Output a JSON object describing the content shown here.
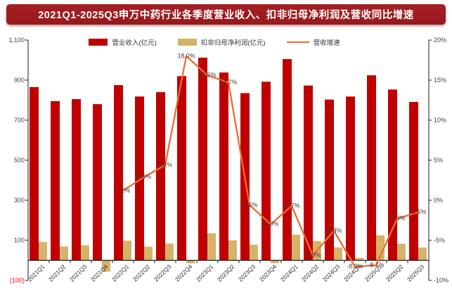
{
  "title": "2021Q1-2025Q3申万中药行业各季度营业收入、扣非归母净利润及营收同比增速",
  "legend": [
    {
      "key": "revenue",
      "label": "营业收入(亿元)",
      "type": "bar",
      "color": "#C00000"
    },
    {
      "key": "net-profit",
      "label": "扣非归母净利润(亿元)",
      "type": "bar",
      "color": "#D5B36B"
    },
    {
      "key": "growth",
      "label": "营收增速",
      "type": "line",
      "color": "#ED6C30"
    }
  ],
  "colors": {
    "banner_bg": "#A61F23",
    "banner_text": "#FFFFFF",
    "revenue_bar": "#C00000",
    "profit_bar": "#D5B36B",
    "growth_line": "#ED6C30",
    "axis": "#1a1a1a",
    "tick_text": "#404040",
    "negative_tick_text": "#FF0000",
    "data_label_text": "#3f3f3f"
  },
  "chart_data": {
    "type": "bar",
    "subtype": "combo-bar-line-dual-axis",
    "title": "2021Q1-2025Q3申万中药行业各季度营业收入、扣非归母净利润及营收同比增速",
    "categories": [
      "2021Q1",
      "2021Q2",
      "2021Q3",
      "2021Q4",
      "2022Q1",
      "2022Q2",
      "2022Q3",
      "2022Q4",
      "2023Q1",
      "2023Q2",
      "2023Q3",
      "2023Q4",
      "2024Q1",
      "2024Q2",
      "2024Q3",
      "2024Q4",
      "2025Q1",
      "2025Q2",
      "2025Q3"
    ],
    "series": [
      {
        "name": "营业收入(亿元)",
        "type": "bar",
        "axis": "left",
        "color": "#C00000",
        "values": [
          865,
          795,
          805,
          780,
          875,
          818,
          840,
          920,
          1012,
          938,
          835,
          892,
          1005,
          873,
          803,
          818,
          924,
          853,
          791
        ]
      },
      {
        "name": "扣非归母净利润(亿元)",
        "type": "bar",
        "axis": "left",
        "color": "#D5B36B",
        "values": [
          92,
          69,
          75,
          -56,
          98,
          68,
          84,
          -15,
          135,
          100,
          78,
          -14,
          128,
          96,
          64,
          12,
          125,
          83,
          64
        ]
      },
      {
        "name": "营收增速",
        "type": "line",
        "axis": "right",
        "color": "#ED6C30",
        "values": [
          null,
          null,
          null,
          null,
          1.2,
          2.9,
          4.4,
          18.0,
          15.6,
          14.7,
          -0.6,
          -3.0,
          -0.7,
          -6.9,
          -3.8,
          -8.3,
          -8.1,
          -2.3,
          -1.5
        ],
        "point_labels": [
          null,
          null,
          null,
          null,
          "1.2%",
          "2.9%",
          "4.4%",
          "18.0%",
          "15.6%",
          "14.7%",
          "-0.6%",
          "-3.0%",
          "-0.7%",
          "-6.9%",
          "-3.8%",
          "-8.3%",
          "-8.1%",
          "-2.3%",
          "-1.5%"
        ]
      }
    ],
    "left_axis": {
      "min": -100,
      "max": 1100,
      "step": 200,
      "tick_values": [
        -100,
        100,
        300,
        500,
        700,
        900,
        1100
      ],
      "tick_labels": [
        "(100)",
        "100",
        "300",
        "500",
        "700",
        "900",
        "1,100"
      ]
    },
    "right_axis": {
      "min": -10,
      "max": 20,
      "step": 5,
      "tick_values": [
        -10,
        -5,
        0,
        5,
        10,
        15,
        20
      ],
      "tick_labels": [
        "-10%",
        "-5%",
        "0%",
        "5%",
        "10%",
        "15%",
        "20%"
      ]
    },
    "grid": false,
    "legend_position": "top-center"
  }
}
